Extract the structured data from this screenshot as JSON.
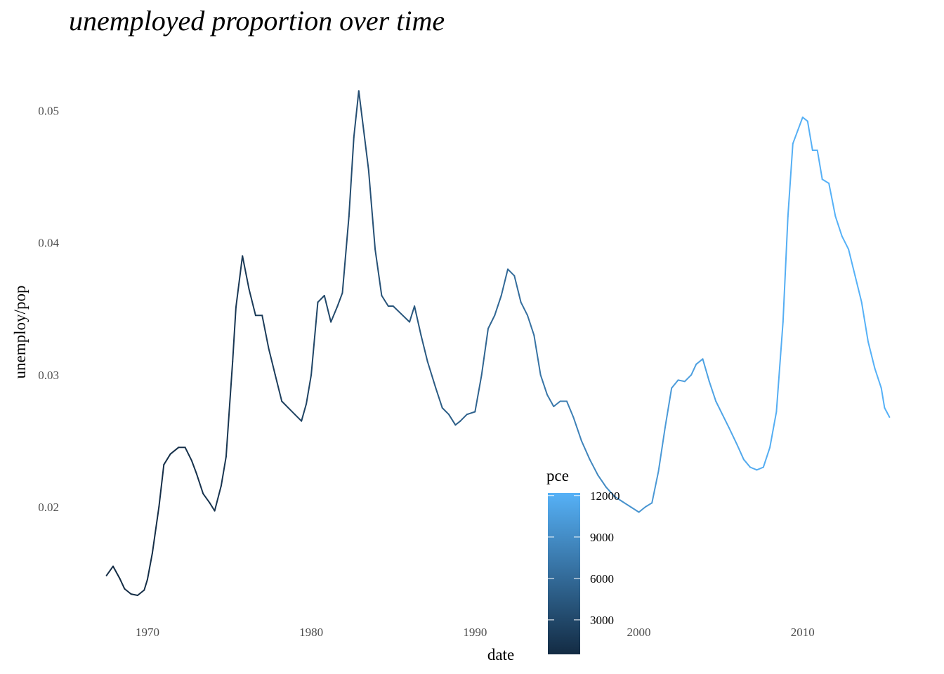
{
  "chart_data": {
    "type": "line",
    "title": "unemployed proportion over time",
    "xlabel": "date",
    "ylabel": "unemploy/pop",
    "x_ticks": [
      "1970",
      "1980",
      "1990",
      "2000",
      "2010"
    ],
    "y_ticks": [
      "0.02",
      "0.03",
      "0.04",
      "0.05"
    ],
    "xlim": [
      1965.2,
      2017.3
    ],
    "ylim": [
      0.0116,
      0.0537
    ],
    "grid": false,
    "legend": {
      "title": "pce",
      "placement": "bottom-center",
      "type": "colorbar",
      "ticks": [
        "3000",
        "6000",
        "9000",
        "12000"
      ],
      "range": [
        507,
        12194
      ],
      "low_color": "#132B43",
      "high_color": "#56B1F7"
    },
    "series": [
      {
        "x": [
          1967.5,
          1967.9,
          1968.3,
          1968.6,
          1969.0,
          1969.4,
          1969.8,
          1970.0,
          1970.3,
          1970.7,
          1971.0,
          1971.4,
          1971.9,
          1972.3,
          1972.7,
          1973.0,
          1973.4,
          1973.8,
          1974.1,
          1974.5,
          1974.8,
          1975.2,
          1975.4,
          1975.8,
          1976.2,
          1976.6,
          1977.0,
          1977.4,
          1977.8,
          1978.2,
          1978.6,
          1979.0,
          1979.4,
          1979.7,
          1980.0,
          1980.4,
          1980.8,
          1981.2,
          1981.6,
          1981.9,
          1982.3,
          1982.6,
          1982.9,
          1983.2,
          1983.5,
          1983.9,
          1984.3,
          1984.7,
          1985.0,
          1985.5,
          1986.0,
          1986.3,
          1986.7,
          1987.1,
          1987.6,
          1988.0,
          1988.4,
          1988.8,
          1989.1,
          1989.5,
          1990.0,
          1990.4,
          1990.8,
          1991.2,
          1991.6,
          1992.0,
          1992.4,
          1992.8,
          1993.2,
          1993.6,
          1994.0,
          1994.4,
          1994.8,
          1995.2,
          1995.6,
          1996.0,
          1996.5,
          1997.0,
          1997.5,
          1998.0,
          1998.5,
          1999.0,
          1999.5,
          2000.0,
          2000.4,
          2000.8,
          2001.2,
          2001.6,
          2002.0,
          2002.4,
          2002.8,
          2003.2,
          2003.5,
          2003.9,
          2004.3,
          2004.7,
          2005.1,
          2005.5,
          2006.0,
          2006.4,
          2006.8,
          2007.2,
          2007.6,
          2008.0,
          2008.4,
          2008.8,
          2009.1,
          2009.4,
          2009.7,
          2010.0,
          2010.3,
          2010.6,
          2010.9,
          2011.2,
          2011.6,
          2012.0,
          2012.4,
          2012.8,
          2013.2,
          2013.6,
          2014.0,
          2014.4,
          2014.8,
          2015.0,
          2015.3
        ],
        "y": [
          0.0148,
          0.0155,
          0.0146,
          0.0138,
          0.0134,
          0.0133,
          0.0137,
          0.0145,
          0.0165,
          0.02,
          0.0232,
          0.024,
          0.0245,
          0.0245,
          0.0235,
          0.0225,
          0.021,
          0.0203,
          0.0197,
          0.0216,
          0.0238,
          0.031,
          0.0351,
          0.039,
          0.0365,
          0.0345,
          0.0345,
          0.032,
          0.03,
          0.028,
          0.0275,
          0.027,
          0.0265,
          0.0278,
          0.03,
          0.0355,
          0.036,
          0.034,
          0.0352,
          0.0362,
          0.042,
          0.048,
          0.0515,
          0.0485,
          0.0455,
          0.0395,
          0.036,
          0.0352,
          0.0352,
          0.0346,
          0.034,
          0.0352,
          0.033,
          0.031,
          0.029,
          0.0275,
          0.027,
          0.0262,
          0.0265,
          0.027,
          0.0272,
          0.03,
          0.0335,
          0.0345,
          0.036,
          0.038,
          0.0375,
          0.0355,
          0.0345,
          0.033,
          0.03,
          0.0285,
          0.0276,
          0.028,
          0.028,
          0.0268,
          0.025,
          0.0236,
          0.0224,
          0.0215,
          0.0208,
          0.0204,
          0.02,
          0.0196,
          0.02,
          0.0203,
          0.0227,
          0.026,
          0.029,
          0.0296,
          0.0295,
          0.03,
          0.0308,
          0.0312,
          0.0295,
          0.028,
          0.027,
          0.026,
          0.0247,
          0.0236,
          0.023,
          0.0228,
          0.023,
          0.0245,
          0.0272,
          0.034,
          0.042,
          0.0475,
          0.0485,
          0.0495,
          0.0492,
          0.047,
          0.047,
          0.0448,
          0.0445,
          0.042,
          0.0405,
          0.0395,
          0.0375,
          0.0355,
          0.0325,
          0.0305,
          0.029,
          0.0275,
          0.0268
        ],
        "pce": [
          540,
          560,
          580,
          600,
          630,
          660,
          690,
          720,
          760,
          790,
          830,
          870,
          920,
          980,
          1050,
          1110,
          1170,
          1230,
          1290,
          1380,
          1460,
          1560,
          1620,
          1680,
          1750,
          1850,
          1950,
          2030,
          2120,
          2230,
          2330,
          2450,
          2560,
          2670,
          2780,
          2870,
          2960,
          3080,
          3170,
          3250,
          3340,
          3430,
          3520,
          3620,
          3700,
          3800,
          3900,
          4000,
          4080,
          4170,
          4280,
          4380,
          4470,
          4570,
          4690,
          4800,
          4900,
          5000,
          5100,
          5220,
          5380,
          5480,
          5600,
          5730,
          5880,
          6030,
          6200,
          6360,
          6540,
          6720,
          6900,
          7100,
          7300,
          7500,
          7700,
          7900,
          8150,
          8400,
          8650,
          8900,
          9150,
          9350,
          9500,
          9650,
          9800,
          9950,
          10080,
          10150,
          10250,
          10380,
          10480,
          10600,
          10680,
          10790,
          10900,
          11000,
          11120,
          11250,
          11380,
          11500,
          11620,
          11740,
          11860,
          11900,
          11920,
          11950,
          11980,
          12010,
          12040,
          12070,
          12100,
          12120,
          12140,
          12160,
          12180,
          12190,
          12194,
          12194,
          12194,
          12194,
          12194,
          12194,
          12194,
          12194,
          12194
        ]
      }
    ]
  }
}
